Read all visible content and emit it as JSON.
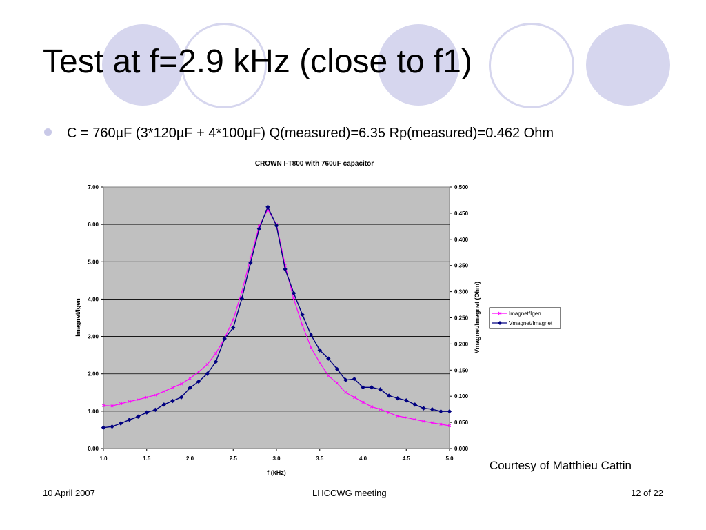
{
  "slide": {
    "title": "Test at f=2.9 kHz (close to f1)",
    "bullet": "C = 760µF (3*120µF + 4*100µF) Q(measured)=6.35 Rp(measured)=0.462 Ohm",
    "courtesy": "Courtesy of Matthieu Cattin",
    "footer": {
      "date": "10 April 2007",
      "meeting": "LHCCWG meeting",
      "page": "12 of 22"
    }
  },
  "colors": {
    "decor_circle": "#d6d6ee",
    "plot_bg": "#c0c0c0",
    "series_imagnet_igen": "#ff00ff",
    "series_vmagnet_imagnet": "#000080"
  },
  "chart_data": {
    "type": "line",
    "title": "CROWN I-T800 with 760uF capacitor",
    "xlabel": "f (kHz)",
    "ylabel": "Imagnet/Igen",
    "y2label": "Vmagnet/Imagnet (Ohm)",
    "xlim": [
      1.0,
      5.0
    ],
    "ylim": [
      0,
      7
    ],
    "y2lim": [
      0,
      0.5
    ],
    "x_ticks": [
      "1.0",
      "1.5",
      "2.0",
      "2.5",
      "3.0",
      "3.5",
      "4.0",
      "4.5",
      "5.0"
    ],
    "y_ticks": [
      "0.00",
      "1.00",
      "2.00",
      "3.00",
      "4.00",
      "5.00",
      "6.00",
      "7.00"
    ],
    "y2_ticks": [
      "0.000",
      "0.050",
      "0.100",
      "0.150",
      "0.200",
      "0.250",
      "0.300",
      "0.350",
      "0.400",
      "0.450",
      "0.500"
    ],
    "grid": "horizontal",
    "legend_position": "right",
    "x": [
      1.0,
      1.1,
      1.2,
      1.3,
      1.4,
      1.5,
      1.6,
      1.7,
      1.8,
      1.9,
      2.0,
      2.1,
      2.2,
      2.3,
      2.4,
      2.5,
      2.6,
      2.7,
      2.8,
      2.9,
      3.0,
      3.1,
      3.2,
      3.3,
      3.4,
      3.5,
      3.6,
      3.7,
      3.8,
      3.9,
      4.0,
      4.1,
      4.2,
      4.3,
      4.4,
      4.5,
      4.6,
      4.7,
      4.8,
      4.9,
      5.0
    ],
    "series": [
      {
        "name": "Imagnet/Igen",
        "axis": "left",
        "marker": "x",
        "values": [
          1.15,
          1.14,
          1.2,
          1.26,
          1.31,
          1.37,
          1.43,
          1.53,
          1.63,
          1.73,
          1.88,
          2.05,
          2.25,
          2.55,
          2.95,
          3.45,
          4.2,
          5.1,
          5.95,
          6.4,
          6.0,
          4.9,
          4.0,
          3.3,
          2.7,
          2.3,
          1.95,
          1.75,
          1.5,
          1.37,
          1.24,
          1.12,
          1.05,
          0.96,
          0.87,
          0.83,
          0.78,
          0.73,
          0.69,
          0.65,
          0.61
        ]
      },
      {
        "name": "Vmagnet/Imagnet",
        "axis": "right",
        "marker": "diamond",
        "values": [
          0.04,
          0.042,
          0.048,
          0.055,
          0.061,
          0.069,
          0.074,
          0.084,
          0.091,
          0.098,
          0.116,
          0.128,
          0.143,
          0.166,
          0.21,
          0.231,
          0.287,
          0.355,
          0.42,
          0.462,
          0.426,
          0.343,
          0.297,
          0.256,
          0.217,
          0.188,
          0.172,
          0.152,
          0.131,
          0.133,
          0.117,
          0.117,
          0.113,
          0.101,
          0.096,
          0.092,
          0.084,
          0.077,
          0.075,
          0.071,
          0.071
        ]
      }
    ]
  }
}
